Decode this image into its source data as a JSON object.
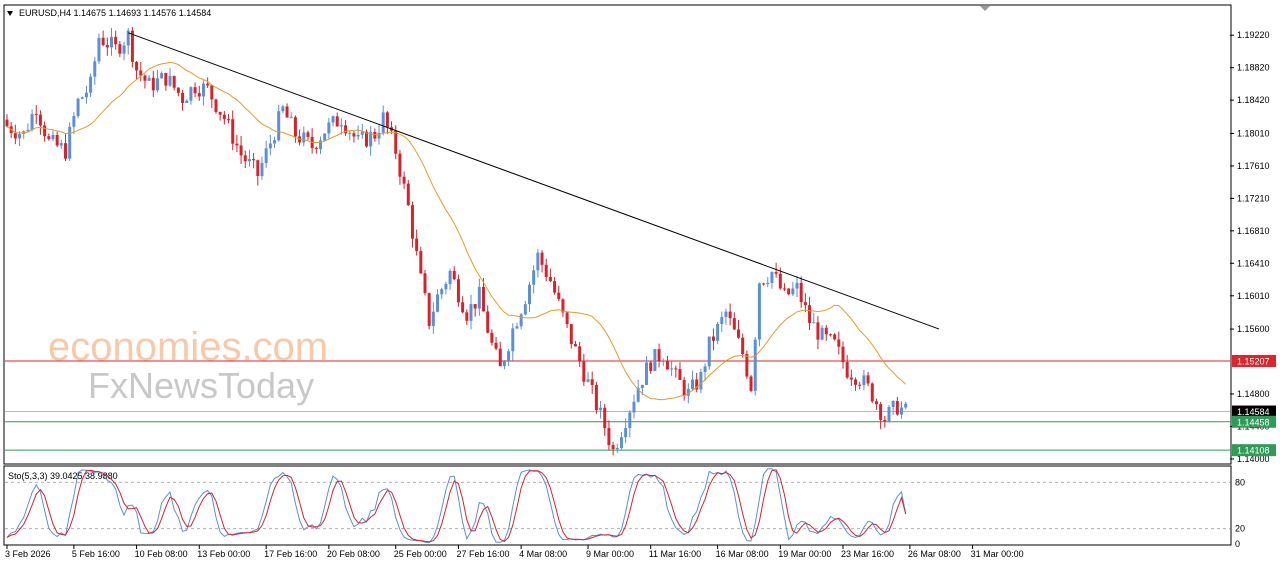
{
  "chart_data": {
    "type": "candlestick",
    "header": {
      "symbol": "EURUSD,H4",
      "open": "1.14675",
      "high": "1.14693",
      "low": "1.14576",
      "close": "1.14584"
    },
    "watermark": [
      "economies.com",
      "FxNewsToday"
    ],
    "price_axis": {
      "ticks": [
        "1.19220",
        "1.18820",
        "1.18420",
        "1.18010",
        "1.17610",
        "1.17210",
        "1.16810",
        "1.16410",
        "1.16010",
        "1.15600",
        "1.14800",
        "1.14400",
        "1.14000"
      ],
      "ylim": [
        1.1395,
        1.1958
      ]
    },
    "price_labels": [
      {
        "value": "1.15207",
        "color": "#e0222a"
      },
      {
        "value": "1.14584",
        "color": "#000000"
      },
      {
        "value": "1.14458",
        "color": "#2e9b57"
      },
      {
        "value": "1.14108",
        "color": "#2e9b57"
      }
    ],
    "horizontal_lines": [
      {
        "value": 1.15207,
        "color": "#e0222a"
      },
      {
        "value": 1.14584,
        "color": "#b8b8b8"
      },
      {
        "value": 1.14458,
        "color": "#2e9b57"
      },
      {
        "value": 1.14108,
        "color": "#2e9b57"
      }
    ],
    "trendline": {
      "from": {
        "bar": 29,
        "price": 1.1925
      },
      "to": {
        "bar": 223,
        "price": 1.156
      },
      "color": "#000000"
    },
    "moving_average_color": "#e89a2a",
    "bull_color": "#5b8fd6",
    "bear_color": "#d6232b",
    "ohlc_keyframes": [
      [
        0,
        1.181
      ],
      [
        4,
        1.18
      ],
      [
        7,
        1.1835
      ],
      [
        10,
        1.179
      ],
      [
        14,
        1.178
      ],
      [
        17,
        1.184
      ],
      [
        20,
        1.186
      ],
      [
        22,
        1.192
      ],
      [
        26,
        1.1905
      ],
      [
        29,
        1.1922
      ],
      [
        31,
        1.188
      ],
      [
        34,
        1.186
      ],
      [
        38,
        1.187
      ],
      [
        42,
        1.1845
      ],
      [
        45,
        1.186
      ],
      [
        48,
        1.1855
      ],
      [
        52,
        1.182
      ],
      [
        56,
        1.1775
      ],
      [
        60,
        1.175
      ],
      [
        63,
        1.179
      ],
      [
        66,
        1.183
      ],
      [
        69,
        1.18
      ],
      [
        73,
        1.1785
      ],
      [
        76,
        1.1805
      ],
      [
        80,
        1.182
      ],
      [
        84,
        1.179
      ],
      [
        88,
        1.18
      ],
      [
        90,
        1.182
      ],
      [
        93,
        1.178
      ],
      [
        96,
        1.171
      ],
      [
        99,
        1.162
      ],
      [
        101,
        1.157
      ],
      [
        103,
        1.16
      ],
      [
        106,
        1.163
      ],
      [
        110,
        1.158
      ],
      [
        113,
        1.16
      ],
      [
        116,
        1.154
      ],
      [
        118,
        1.151
      ],
      [
        121,
        1.156
      ],
      [
        124,
        1.16
      ],
      [
        127,
        1.165
      ],
      [
        130,
        1.162
      ],
      [
        134,
        1.156
      ],
      [
        137,
        1.152
      ],
      [
        140,
        1.148
      ],
      [
        143,
        1.144
      ],
      [
        145,
        1.141
      ],
      [
        148,
        1.145
      ],
      [
        151,
        1.149
      ],
      [
        154,
        1.152
      ],
      [
        157,
        1.153
      ],
      [
        160,
        1.15
      ],
      [
        163,
        1.148
      ],
      [
        166,
        1.15
      ],
      [
        168,
        1.154
      ],
      [
        172,
        1.158
      ],
      [
        176,
        1.153
      ],
      [
        178,
        1.149
      ],
      [
        180,
        1.162
      ],
      [
        183,
        1.163
      ],
      [
        186,
        1.16
      ],
      [
        189,
        1.161
      ],
      [
        192,
        1.157
      ],
      [
        195,
        1.155
      ],
      [
        198,
        1.154
      ],
      [
        201,
        1.151
      ],
      [
        204,
        1.15
      ],
      [
        207,
        1.148
      ],
      [
        210,
        1.145
      ],
      [
        213,
        1.1465
      ],
      [
        215,
        1.1458
      ]
    ],
    "stochastic": {
      "label": "Sto(5,3,3) 39.0425 38.9880",
      "k": 39.0425,
      "d": 38.988,
      "levels": [
        80,
        20
      ],
      "ticks": [
        "80",
        "20",
        "0"
      ],
      "ylim": [
        0,
        100
      ]
    },
    "time_axis": [
      {
        "label": "3 Feb 2026",
        "bar": 0
      },
      {
        "label": "5 Feb 16:00",
        "bar": 16
      },
      {
        "label": "10 Feb 08:00",
        "bar": 31
      },
      {
        "label": "13 Feb 00:00",
        "bar": 46
      },
      {
        "label": "17 Feb 16:00",
        "bar": 62
      },
      {
        "label": "20 Feb 08:00",
        "bar": 77
      },
      {
        "label": "25 Feb 00:00",
        "bar": 93
      },
      {
        "label": "27 Feb 16:00",
        "bar": 108
      },
      {
        "label": "4 Mar 08:00",
        "bar": 123
      },
      {
        "label": "9 Mar 00:00",
        "bar": 139
      },
      {
        "label": "11 Mar 16:00",
        "bar": 154
      },
      {
        "label": "16 Mar 08:00",
        "bar": 170
      },
      {
        "label": "19 Mar 00:00",
        "bar": 185
      },
      {
        "label": "23 Mar 16:00",
        "bar": 200
      },
      {
        "label": "26 Mar 08:00",
        "bar": 216
      },
      {
        "label": "31 Mar 00:00",
        "bar": 231
      }
    ]
  }
}
